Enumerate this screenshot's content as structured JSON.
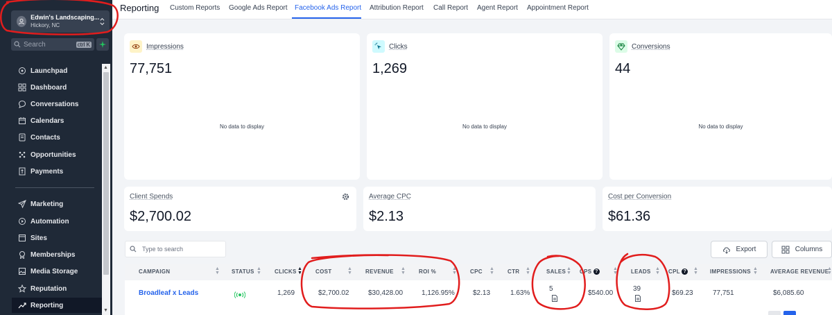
{
  "sidebar": {
    "location_name": "Edwin's Landscaping...",
    "location_city": "Hickory, NC",
    "search_placeholder": "Search",
    "search_shortcut": "ctrl K",
    "items": [
      {
        "label": "Launchpad",
        "icon": "rocket-icon"
      },
      {
        "label": "Dashboard",
        "icon": "grid-icon"
      },
      {
        "label": "Conversations",
        "icon": "chat-icon"
      },
      {
        "label": "Calendars",
        "icon": "calendar-icon"
      },
      {
        "label": "Contacts",
        "icon": "contacts-icon"
      },
      {
        "label": "Opportunities",
        "icon": "funnel-icon"
      },
      {
        "label": "Payments",
        "icon": "invoice-icon"
      },
      {
        "label": "Marketing",
        "icon": "send-icon"
      },
      {
        "label": "Automation",
        "icon": "automation-icon"
      },
      {
        "label": "Sites",
        "icon": "globe-icon"
      },
      {
        "label": "Memberships",
        "icon": "award-icon"
      },
      {
        "label": "Media Storage",
        "icon": "image-icon"
      },
      {
        "label": "Reputation",
        "icon": "star-icon"
      },
      {
        "label": "Reporting",
        "icon": "chart-icon",
        "active": true
      }
    ]
  },
  "tabs": {
    "title": "Reporting",
    "items": [
      "Custom Reports",
      "Google Ads Report",
      "Facebook Ads Report",
      "Attribution Report",
      "Call Report",
      "Agent Report",
      "Appointment Report"
    ],
    "active": "Facebook Ads Report"
  },
  "metrics": [
    {
      "label": "Impressions",
      "value": "77,751",
      "empty": "No data to display",
      "icon": "eye-icon",
      "icon_bg": "#fef3c7"
    },
    {
      "label": "Clicks",
      "value": "1,269",
      "empty": "No data to display",
      "icon": "cursor-click-icon",
      "icon_bg": "#cffafe"
    },
    {
      "label": "Conversions",
      "value": "44",
      "empty": "No data to display",
      "icon": "diamond-icon",
      "icon_bg": "#dcfce7"
    }
  ],
  "spend": [
    {
      "label": "Client Spends",
      "value": "$2,700.02"
    },
    {
      "label": "Average CPC",
      "value": "$2.13"
    },
    {
      "label": "Cost per Conversion",
      "value": "$61.36"
    }
  ],
  "table": {
    "search_placeholder": "Type to search",
    "export_label": "Export",
    "columns_label": "Columns",
    "headers": [
      "CAMPAIGN",
      "STATUS",
      "CLICKS",
      "COST",
      "REVENUE",
      "ROI %",
      "CPC",
      "CTR",
      "SALES",
      "CPS",
      "LEADS",
      "CPL",
      "IMPRESSIONS",
      "AVERAGE REVENUE"
    ],
    "row": {
      "campaign": "Broadleaf x Leads",
      "status": "active",
      "clicks": "1,269",
      "cost": "$2,700.02",
      "revenue": "$30,428.00",
      "roi": "1,126.95%",
      "cpc": "$2.13",
      "ctr": "1.63%",
      "sales": "5",
      "cps": "$540.00",
      "leads": "39",
      "cpl": "$69.23",
      "impressions": "77,751",
      "average_revenue": "$6,085.60"
    }
  },
  "colors": {
    "accent": "#2563eb",
    "sidebar": "#1f2937",
    "annotation": "#e11d1d",
    "status": "#22c55e"
  }
}
